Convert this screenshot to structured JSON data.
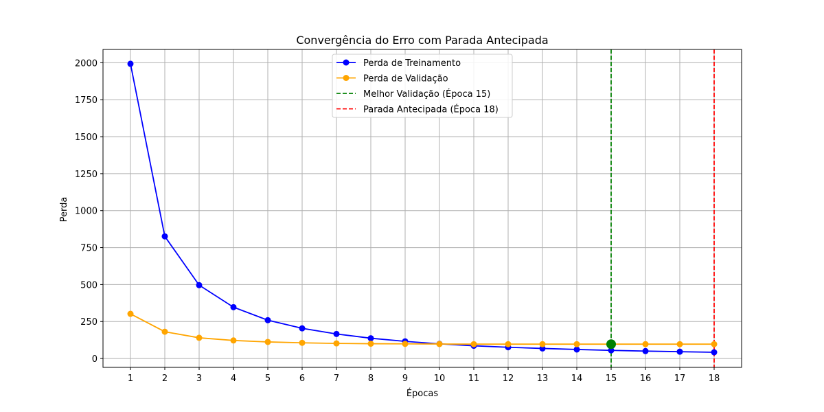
{
  "chart_data": {
    "type": "line",
    "title": "Convergência do Erro com Parada Antecipada",
    "xlabel": "Épocas",
    "ylabel": "Perda",
    "x": [
      1,
      2,
      3,
      4,
      5,
      6,
      7,
      8,
      9,
      10,
      11,
      12,
      13,
      14,
      15,
      16,
      17,
      18
    ],
    "xlim": [
      0.2,
      18.8
    ],
    "ylim": [
      -60,
      2090
    ],
    "yticks": [
      0,
      250,
      500,
      750,
      1000,
      1250,
      1500,
      1750,
      2000
    ],
    "grid": true,
    "legend_position": "upper center",
    "series": [
      {
        "name": "Perda de Treinamento",
        "color": "#0000ff",
        "values": [
          1993,
          826,
          496,
          347,
          259,
          204,
          166,
          137,
          116,
          99,
          86,
          76,
          68,
          61,
          55,
          50,
          46,
          42
        ]
      },
      {
        "name": "Perda de Validação",
        "color": "#ffa500",
        "values": [
          302,
          181,
          140,
          122,
          112,
          106,
          102,
          100,
          99,
          98,
          97,
          97,
          97,
          97,
          97,
          97,
          97,
          97
        ]
      }
    ],
    "vlines": [
      {
        "name": "Melhor Validação (Época 15)",
        "x": 15,
        "color": "#008000"
      },
      {
        "name": "Parada Antecipada (Época 18)",
        "x": 18,
        "color": "#ff0000"
      }
    ],
    "best_point": {
      "x": 15,
      "y": 97,
      "color": "#008000"
    }
  }
}
